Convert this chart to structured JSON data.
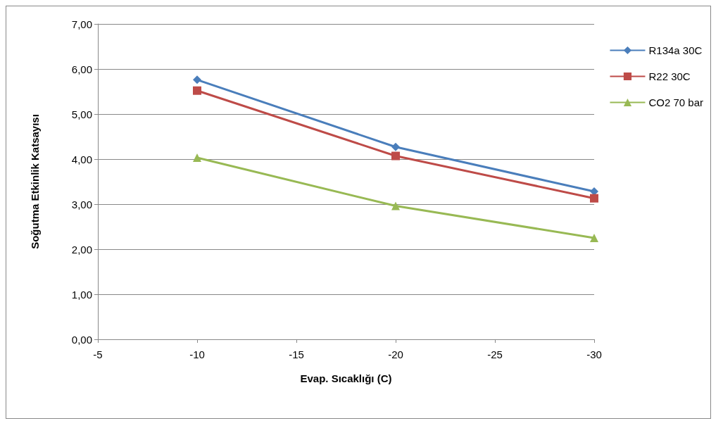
{
  "chart_data": {
    "type": "line",
    "xlabel": "Evap. Sıcaklığı (C)",
    "ylabel": "Soğutma Etkinlik Katsayısı",
    "x": [
      -10,
      -20,
      -30
    ],
    "xlim": [
      -5,
      -30
    ],
    "xticks": [
      -5,
      -10,
      -15,
      -20,
      -25,
      -30
    ],
    "ylim": [
      0,
      7
    ],
    "yticks": [
      {
        "value": 0,
        "label": "0,00"
      },
      {
        "value": 1,
        "label": "1,00"
      },
      {
        "value": 2,
        "label": "2,00"
      },
      {
        "value": 3,
        "label": "3,00"
      },
      {
        "value": 4,
        "label": "4,00"
      },
      {
        "value": 5,
        "label": "5,00"
      },
      {
        "value": 6,
        "label": "6,00"
      },
      {
        "value": 7,
        "label": "7,00"
      }
    ],
    "grid": "y",
    "legend": "right",
    "series": [
      {
        "name": "R134a 30C",
        "color": "#4a7ebb",
        "marker": "diamond",
        "values": [
          5.76,
          4.27,
          3.28
        ]
      },
      {
        "name": "R22 30C",
        "color": "#be4b48",
        "marker": "square",
        "values": [
          5.52,
          4.07,
          3.13
        ]
      },
      {
        "name": "CO2 70 bar",
        "color": "#98b954",
        "marker": "triangle",
        "values": [
          4.03,
          2.96,
          2.25
        ]
      }
    ]
  }
}
